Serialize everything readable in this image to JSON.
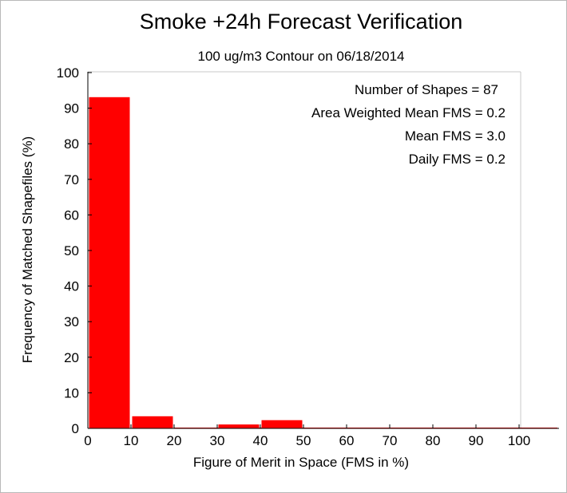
{
  "chart_data": {
    "type": "bar",
    "title": "Smoke +24h Forecast Verification",
    "subtitle": "100 ug/m3 Contour on 06/18/2014",
    "xlabel": "Figure of Merit in Space (FMS in %)",
    "ylabel": "Frequency of Matched Shapefiles (%)",
    "xlim": [
      0,
      100
    ],
    "ylim": [
      0,
      100
    ],
    "xticks": [
      "0",
      "10",
      "20",
      "30",
      "40",
      "50",
      "60",
      "70",
      "80",
      "90",
      "100"
    ],
    "yticks": [
      "0",
      "10",
      "20",
      "30",
      "40",
      "50",
      "60",
      "70",
      "80",
      "90",
      "100"
    ],
    "bins": [
      [
        0,
        10
      ],
      [
        10,
        20
      ],
      [
        20,
        30
      ],
      [
        30,
        40
      ],
      [
        40,
        50
      ],
      [
        50,
        60
      ],
      [
        60,
        70
      ],
      [
        70,
        80
      ],
      [
        80,
        90
      ],
      [
        90,
        100
      ]
    ],
    "values": [
      93.1,
      3.4,
      0,
      1.1,
      2.3,
      0,
      0,
      0,
      0,
      0
    ],
    "bar_color": "#ff0000",
    "annotations": [
      "Number of Shapes = 87",
      "Area Weighted Mean FMS = 0.2",
      "Mean FMS = 3.0",
      "Daily FMS = 0.2"
    ]
  }
}
